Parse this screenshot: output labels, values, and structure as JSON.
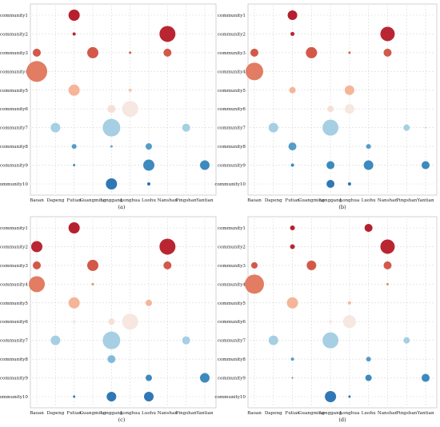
{
  "chart_data": [
    {
      "type": "bubble-matrix",
      "caption": "(a)",
      "x": [
        "Baoan",
        "Dapeng",
        "Futian",
        "Guangming",
        "Longgang",
        "Longhua",
        "Luohu",
        "Nanshan",
        "Pingshan",
        "Yantian"
      ],
      "y": [
        "community1",
        "community2",
        "community3",
        "community4",
        "community5",
        "community6",
        "community7",
        "community8",
        "community9",
        "community10"
      ],
      "points": [
        {
          "x": "Futian",
          "y": "community1",
          "size": 7,
          "value": 0.95
        },
        {
          "x": "Futian",
          "y": "community2",
          "size": 2,
          "value": 0.9
        },
        {
          "x": "Nanshan",
          "y": "community2",
          "size": 10,
          "value": 0.9
        },
        {
          "x": "Baoan",
          "y": "community3",
          "size": 5,
          "value": 0.55
        },
        {
          "x": "Guangming",
          "y": "community3",
          "size": 7,
          "value": 0.55
        },
        {
          "x": "Longhua",
          "y": "community3",
          "size": 1.5,
          "value": 0.5
        },
        {
          "x": "Nanshan",
          "y": "community3",
          "size": 5,
          "value": 0.55
        },
        {
          "x": "Baoan",
          "y": "community4",
          "size": 13,
          "value": 0.4
        },
        {
          "x": "Futian",
          "y": "community5",
          "size": 7,
          "value": 0.2
        },
        {
          "x": "Longhua",
          "y": "community5",
          "size": 2,
          "value": 0.15
        },
        {
          "x": "Longgang",
          "y": "community6",
          "size": 5,
          "value": 0.07
        },
        {
          "x": "Longhua",
          "y": "community6",
          "size": 10,
          "value": 0.05
        },
        {
          "x": "Dapeng",
          "y": "community7",
          "size": 6,
          "value": -0.2
        },
        {
          "x": "Longgang",
          "y": "community7",
          "size": 11,
          "value": -0.2
        },
        {
          "x": "Pingshan",
          "y": "community7",
          "size": 5,
          "value": -0.2
        },
        {
          "x": "Futian",
          "y": "community8",
          "size": 3,
          "value": -0.45
        },
        {
          "x": "Longgang",
          "y": "community8",
          "size": 1.5,
          "value": -0.4
        },
        {
          "x": "Luohu",
          "y": "community8",
          "size": 4,
          "value": -0.45
        },
        {
          "x": "Futian",
          "y": "community9",
          "size": 1.5,
          "value": -0.6
        },
        {
          "x": "Luohu",
          "y": "community9",
          "size": 7,
          "value": -0.6
        },
        {
          "x": "Yantian",
          "y": "community9",
          "size": 6,
          "value": -0.6
        },
        {
          "x": "Longgang",
          "y": "community10",
          "size": 7,
          "value": -0.8
        },
        {
          "x": "Luohu",
          "y": "community10",
          "size": 2,
          "value": -0.85
        }
      ]
    },
    {
      "type": "bubble-matrix",
      "caption": "(b)",
      "x": [
        "Baoan",
        "Dapeng",
        "Futian",
        "Guangming",
        "Longgang",
        "Longhua",
        "Luohu",
        "Nanshan",
        "Pingshan",
        "Yantian"
      ],
      "y": [
        "community1",
        "community2",
        "community3",
        "community4",
        "community5",
        "community6",
        "community7",
        "community8",
        "community9",
        "community10"
      ],
      "points": [
        {
          "x": "Futian",
          "y": "community1",
          "size": 6,
          "value": 0.95
        },
        {
          "x": "Futian",
          "y": "community2",
          "size": 2.5,
          "value": 0.9
        },
        {
          "x": "Nanshan",
          "y": "community2",
          "size": 9,
          "value": 0.9
        },
        {
          "x": "Baoan",
          "y": "community3",
          "size": 5,
          "value": 0.55
        },
        {
          "x": "Guangming",
          "y": "community3",
          "size": 7,
          "value": 0.55
        },
        {
          "x": "Longhua",
          "y": "community3",
          "size": 1.5,
          "value": 0.5
        },
        {
          "x": "Nanshan",
          "y": "community3",
          "size": 5,
          "value": 0.55
        },
        {
          "x": "Baoan",
          "y": "community4",
          "size": 11,
          "value": 0.4
        },
        {
          "x": "Futian",
          "y": "community5",
          "size": 4,
          "value": 0.2
        },
        {
          "x": "Longhua",
          "y": "community5",
          "size": 6,
          "value": 0.2
        },
        {
          "x": "Longgang",
          "y": "community6",
          "size": 4,
          "value": 0.07
        },
        {
          "x": "Longhua",
          "y": "community6",
          "size": 6,
          "value": 0.05
        },
        {
          "x": "Dapeng",
          "y": "community7",
          "size": 6,
          "value": -0.2
        },
        {
          "x": "Longgang",
          "y": "community7",
          "size": 10,
          "value": -0.2
        },
        {
          "x": "Pingshan",
          "y": "community7",
          "size": 4,
          "value": -0.2
        },
        {
          "x": "Yantian",
          "y": "community7",
          "size": 1,
          "value": -0.2
        },
        {
          "x": "Futian",
          "y": "community8",
          "size": 5,
          "value": -0.45
        },
        {
          "x": "Luohu",
          "y": "community8",
          "size": 3,
          "value": -0.45
        },
        {
          "x": "Futian",
          "y": "community9",
          "size": 2,
          "value": -0.6
        },
        {
          "x": "Longgang",
          "y": "community9",
          "size": 5,
          "value": -0.6
        },
        {
          "x": "Luohu",
          "y": "community9",
          "size": 6,
          "value": -0.6
        },
        {
          "x": "Yantian",
          "y": "community9",
          "size": 5,
          "value": -0.6
        },
        {
          "x": "Longgang",
          "y": "community10",
          "size": 5,
          "value": -0.8
        },
        {
          "x": "Longhua",
          "y": "community10",
          "size": 2,
          "value": -0.85
        }
      ]
    },
    {
      "type": "bubble-matrix",
      "caption": "(c)",
      "x": [
        "Baoan",
        "Dapeng",
        "Futian",
        "Guangming",
        "Longgang",
        "Longhua",
        "Luohu",
        "Nanshan",
        "Pingshan",
        "Yantian"
      ],
      "y": [
        "community1",
        "community2",
        "community3",
        "community4",
        "community5",
        "community6",
        "community7",
        "community8",
        "community9",
        "community10"
      ],
      "points": [
        {
          "x": "Futian",
          "y": "community1",
          "size": 7,
          "value": 0.95
        },
        {
          "x": "Baoan",
          "y": "community2",
          "size": 7,
          "value": 0.9
        },
        {
          "x": "Nanshan",
          "y": "community2",
          "size": 10,
          "value": 0.9
        },
        {
          "x": "Baoan",
          "y": "community3",
          "size": 5,
          "value": 0.55
        },
        {
          "x": "Guangming",
          "y": "community3",
          "size": 7,
          "value": 0.55
        },
        {
          "x": "Nanshan",
          "y": "community3",
          "size": 5,
          "value": 0.55
        },
        {
          "x": "Baoan",
          "y": "community4",
          "size": 10,
          "value": 0.4
        },
        {
          "x": "Guangming",
          "y": "community4",
          "size": 1.5,
          "value": 0.35
        },
        {
          "x": "Futian",
          "y": "community5",
          "size": 7,
          "value": 0.2
        },
        {
          "x": "Luohu",
          "y": "community5",
          "size": 4,
          "value": 0.2
        },
        {
          "x": "Futian",
          "y": "community6",
          "size": 2,
          "value": 0.05
        },
        {
          "x": "Longgang",
          "y": "community6",
          "size": 4,
          "value": 0.07
        },
        {
          "x": "Longhua",
          "y": "community6",
          "size": 10,
          "value": 0.05
        },
        {
          "x": "Dapeng",
          "y": "community7",
          "size": 6,
          "value": -0.2
        },
        {
          "x": "Longgang",
          "y": "community7",
          "size": 11,
          "value": -0.2
        },
        {
          "x": "Pingshan",
          "y": "community7",
          "size": 5,
          "value": -0.2
        },
        {
          "x": "Longgang",
          "y": "community8",
          "size": 5,
          "value": -0.3
        },
        {
          "x": "Luohu",
          "y": "community9",
          "size": 4,
          "value": -0.6
        },
        {
          "x": "Yantian",
          "y": "community9",
          "size": 6,
          "value": -0.6
        },
        {
          "x": "Futian",
          "y": "community10",
          "size": 1.5,
          "value": -0.8
        },
        {
          "x": "Longgang",
          "y": "community10",
          "size": 6,
          "value": -0.8
        },
        {
          "x": "Luohu",
          "y": "community10",
          "size": 6,
          "value": -0.8
        }
      ]
    },
    {
      "type": "bubble-matrix",
      "caption": "(d)",
      "x": [
        "Baoan",
        "Dapeng",
        "Futian",
        "Guangming",
        "Longgang",
        "Longhua",
        "Luohu",
        "Nanshan",
        "Pingshan",
        "Yantian"
      ],
      "y": [
        "community1",
        "community2",
        "community3",
        "community4",
        "community5",
        "community6",
        "community7",
        "community8",
        "community9",
        "community10"
      ],
      "points": [
        {
          "x": "Futian",
          "y": "community1",
          "size": 3,
          "value": 0.95
        },
        {
          "x": "Luohu",
          "y": "community1",
          "size": 5,
          "value": 0.95
        },
        {
          "x": "Futian",
          "y": "community2",
          "size": 3,
          "value": 0.9
        },
        {
          "x": "Nanshan",
          "y": "community2",
          "size": 9,
          "value": 0.9
        },
        {
          "x": "Baoan",
          "y": "community3",
          "size": 4,
          "value": 0.55
        },
        {
          "x": "Guangming",
          "y": "community3",
          "size": 6,
          "value": 0.55
        },
        {
          "x": "Nanshan",
          "y": "community3",
          "size": 5,
          "value": 0.55
        },
        {
          "x": "Baoan",
          "y": "community4",
          "size": 12,
          "value": 0.4
        },
        {
          "x": "Nanshan",
          "y": "community4",
          "size": 1.5,
          "value": 0.35
        },
        {
          "x": "Futian",
          "y": "community5",
          "size": 7,
          "value": 0.2
        },
        {
          "x": "Longhua",
          "y": "community5",
          "size": 2,
          "value": 0.2
        },
        {
          "x": "Longgang",
          "y": "community6",
          "size": 2,
          "value": 0.05
        },
        {
          "x": "Longhua",
          "y": "community6",
          "size": 8,
          "value": 0.05
        },
        {
          "x": "Dapeng",
          "y": "community7",
          "size": 6,
          "value": -0.2
        },
        {
          "x": "Longgang",
          "y": "community7",
          "size": 10,
          "value": -0.2
        },
        {
          "x": "Pingshan",
          "y": "community7",
          "size": 4,
          "value": -0.2
        },
        {
          "x": "Futian",
          "y": "community8",
          "size": 2,
          "value": -0.45
        },
        {
          "x": "Luohu",
          "y": "community8",
          "size": 3,
          "value": -0.45
        },
        {
          "x": "Futian",
          "y": "community9",
          "size": 1,
          "value": -0.6
        },
        {
          "x": "Luohu",
          "y": "community9",
          "size": 4,
          "value": -0.6
        },
        {
          "x": "Yantian",
          "y": "community9",
          "size": 5,
          "value": -0.6
        },
        {
          "x": "Longgang",
          "y": "community10",
          "size": 7,
          "value": -0.8
        },
        {
          "x": "Longhua",
          "y": "community10",
          "size": 1.5,
          "value": -0.85
        }
      ]
    }
  ]
}
